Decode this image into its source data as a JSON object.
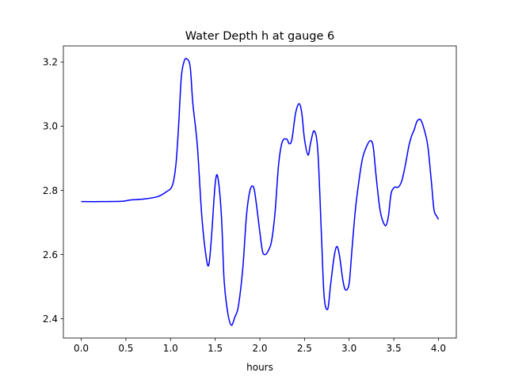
{
  "chart_data": {
    "type": "line",
    "title": "Water Depth h at gauge 6",
    "xlabel": "hours",
    "ylabel": "",
    "xlim": [
      -0.2,
      4.2
    ],
    "ylim": [
      2.34,
      3.25
    ],
    "xticks": [
      0.0,
      0.5,
      1.0,
      1.5,
      2.0,
      2.5,
      3.0,
      3.5,
      4.0
    ],
    "xtick_labels": [
      "0.0",
      "0.5",
      "1.0",
      "1.5",
      "2.0",
      "2.5",
      "3.0",
      "3.5",
      "4.0"
    ],
    "yticks": [
      2.4,
      2.6,
      2.8,
      3.0,
      3.2
    ],
    "ytick_labels": [
      "2.4",
      "2.6",
      "2.8",
      "3.0",
      "3.2"
    ],
    "grid": false,
    "legend": "none",
    "series": [
      {
        "color": "#0000ff",
        "x": [
          0.0,
          0.2,
          0.45,
          0.55,
          0.7,
          0.85,
          0.95,
          1.02,
          1.06,
          1.09,
          1.12,
          1.15,
          1.18,
          1.22,
          1.25,
          1.3,
          1.35,
          1.4,
          1.43,
          1.46,
          1.5,
          1.53,
          1.57,
          1.6,
          1.64,
          1.68,
          1.72,
          1.76,
          1.81,
          1.85,
          1.89,
          1.93,
          1.96,
          2.0,
          2.03,
          2.06,
          2.09,
          2.13,
          2.17,
          2.21,
          2.25,
          2.3,
          2.33,
          2.36,
          2.4,
          2.44,
          2.47,
          2.5,
          2.54,
          2.57,
          2.61,
          2.65,
          2.69,
          2.72,
          2.76,
          2.79,
          2.83,
          2.86,
          2.89,
          2.93,
          2.96,
          3.0,
          3.03,
          3.07,
          3.11,
          3.15,
          3.2,
          3.24,
          3.27,
          3.3,
          3.34,
          3.37,
          3.41,
          3.44,
          3.47,
          3.51,
          3.55,
          3.59,
          3.63,
          3.67,
          3.7,
          3.73,
          3.76,
          3.8,
          3.84,
          3.88,
          3.92,
          3.95,
          3.98,
          4.0
        ],
        "y": [
          2.765,
          2.765,
          2.766,
          2.77,
          2.773,
          2.78,
          2.795,
          2.815,
          2.88,
          3.0,
          3.15,
          3.2,
          3.21,
          3.185,
          3.07,
          2.94,
          2.72,
          2.59,
          2.57,
          2.66,
          2.82,
          2.84,
          2.72,
          2.52,
          2.42,
          2.38,
          2.405,
          2.44,
          2.56,
          2.72,
          2.8,
          2.81,
          2.76,
          2.67,
          2.61,
          2.6,
          2.61,
          2.64,
          2.73,
          2.88,
          2.95,
          2.96,
          2.945,
          2.96,
          3.04,
          3.07,
          3.04,
          2.96,
          2.91,
          2.95,
          2.985,
          2.92,
          2.66,
          2.47,
          2.43,
          2.5,
          2.59,
          2.625,
          2.6,
          2.52,
          2.49,
          2.51,
          2.61,
          2.74,
          2.83,
          2.9,
          2.94,
          2.955,
          2.935,
          2.85,
          2.75,
          2.71,
          2.69,
          2.72,
          2.79,
          2.81,
          2.81,
          2.83,
          2.88,
          2.94,
          2.97,
          2.99,
          3.015,
          3.02,
          2.99,
          2.94,
          2.83,
          2.74,
          2.72,
          2.71
        ]
      }
    ]
  }
}
